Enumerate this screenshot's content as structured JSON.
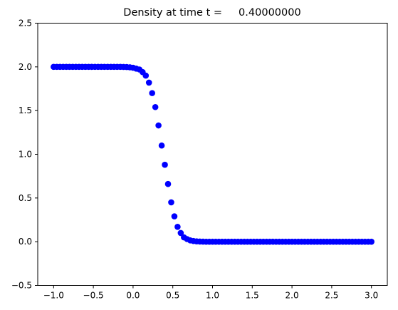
{
  "chart_data": {
    "type": "scatter",
    "title": "Density at time t =     0.40000000",
    "xlabel": "",
    "ylabel": "",
    "xlim": [
      -1.2,
      3.2
    ],
    "ylim": [
      -0.5,
      2.5
    ],
    "grid": false,
    "x_ticks": [
      -1.0,
      -0.5,
      0.0,
      0.5,
      1.0,
      1.5,
      2.0,
      2.5,
      3.0
    ],
    "x_tick_labels": [
      "−1.0",
      "−0.5",
      "0.0",
      "0.5",
      "1.0",
      "1.5",
      "2.0",
      "2.5",
      "3.0"
    ],
    "y_ticks": [
      -0.5,
      0.0,
      0.5,
      1.0,
      1.5,
      2.0,
      2.5
    ],
    "y_tick_labels": [
      "−0.5",
      "0.0",
      "0.5",
      "1.0",
      "1.5",
      "2.0",
      "2.5"
    ],
    "marker_color": "#0000ff",
    "series": [
      {
        "x": [
          -1.0,
          -0.96,
          -0.92,
          -0.88,
          -0.84,
          -0.8,
          -0.76,
          -0.72,
          -0.68,
          -0.64,
          -0.6,
          -0.56,
          -0.52,
          -0.48,
          -0.44,
          -0.4,
          -0.36,
          -0.32,
          -0.28,
          -0.24,
          -0.2,
          -0.16,
          -0.12,
          -0.08,
          -0.04,
          0.0,
          0.04,
          0.08,
          0.12,
          0.16,
          0.2,
          0.24,
          0.28,
          0.32,
          0.36,
          0.4,
          0.44,
          0.48,
          0.52,
          0.56,
          0.6,
          0.64,
          0.68,
          0.72,
          0.76,
          0.8,
          0.84,
          0.88,
          0.92,
          0.96,
          1.0,
          1.04,
          1.08,
          1.12,
          1.16,
          1.2,
          1.24,
          1.28,
          1.32,
          1.36,
          1.4,
          1.44,
          1.48,
          1.52,
          1.56,
          1.6,
          1.64,
          1.68,
          1.72,
          1.76,
          1.8,
          1.84,
          1.88,
          1.92,
          1.96,
          2.0,
          2.04,
          2.08,
          2.12,
          2.16,
          2.2,
          2.24,
          2.28,
          2.32,
          2.36,
          2.4,
          2.44,
          2.48,
          2.52,
          2.56,
          2.6,
          2.64,
          2.68,
          2.72,
          2.76,
          2.8,
          2.84,
          2.88,
          2.92,
          2.96,
          3.0
        ],
        "y": [
          2.0,
          2.0,
          2.0,
          2.0,
          2.0,
          2.0,
          2.0,
          2.0,
          2.0,
          2.0,
          2.0,
          2.0,
          2.0,
          2.0,
          2.0,
          2.0,
          2.0,
          2.0,
          2.0,
          2.0,
          2.0,
          2.0,
          1.999,
          1.998,
          1.995,
          1.99,
          1.98,
          1.97,
          1.94,
          1.9,
          1.82,
          1.7,
          1.54,
          1.33,
          1.1,
          0.88,
          0.66,
          0.45,
          0.29,
          0.17,
          0.1,
          0.05,
          0.03,
          0.015,
          0.008,
          0.004,
          0.002,
          0.001,
          0.0,
          0.0,
          0.0,
          0.0,
          0.0,
          0.0,
          0.0,
          0.0,
          0.0,
          0.0,
          0.0,
          0.0,
          0.0,
          0.0,
          0.0,
          0.0,
          0.0,
          0.0,
          0.0,
          0.0,
          0.0,
          0.0,
          0.0,
          0.0,
          0.0,
          0.0,
          0.0,
          0.0,
          0.0,
          0.0,
          0.0,
          0.0,
          0.0,
          0.0,
          0.0,
          0.0,
          0.0,
          0.0,
          0.0,
          0.0,
          0.0,
          0.0,
          0.0,
          0.0,
          0.0,
          0.0,
          0.0,
          0.0,
          0.0,
          0.0,
          0.0,
          0.0,
          0.0
        ]
      }
    ]
  }
}
